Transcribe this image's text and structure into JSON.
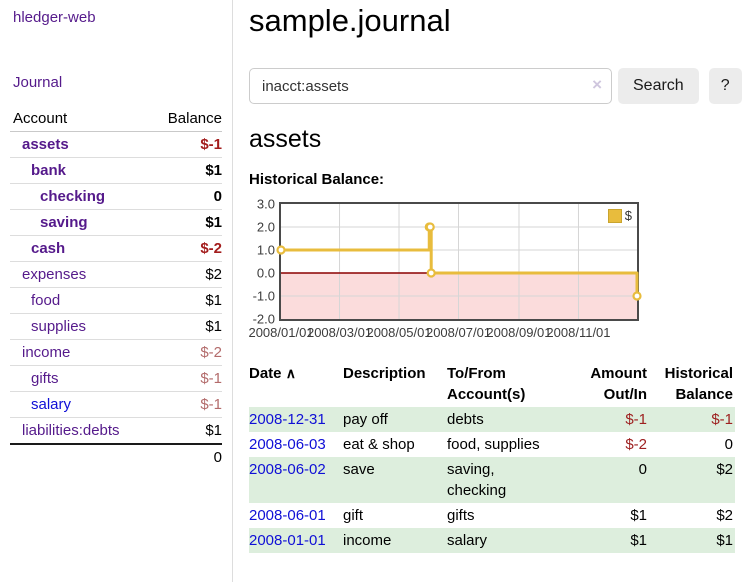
{
  "app": {
    "brand": "hledger-web",
    "nav_journal": "Journal"
  },
  "sidebar": {
    "col_account": "Account",
    "col_balance": "Balance",
    "accounts": [
      {
        "name": "assets",
        "balance": "$-1"
      },
      {
        "name": "bank",
        "balance": "$1"
      },
      {
        "name": "checking",
        "balance": "0"
      },
      {
        "name": "saving",
        "balance": "$1"
      },
      {
        "name": "cash",
        "balance": "$-2"
      },
      {
        "name": "expenses",
        "balance": "$2"
      },
      {
        "name": "food",
        "balance": "$1"
      },
      {
        "name": "supplies",
        "balance": "$1"
      },
      {
        "name": "income",
        "balance": "$-2"
      },
      {
        "name": "gifts",
        "balance": "$-1"
      },
      {
        "name": "salary",
        "balance": "$-1"
      },
      {
        "name": "liabilities:debts",
        "balance": "$1"
      }
    ],
    "total": "0"
  },
  "header": {
    "title": "sample.journal"
  },
  "search": {
    "value": "inacct:assets",
    "clear_icon": "×",
    "button_label": "Search",
    "help_label": "?"
  },
  "account_page": {
    "title": "assets",
    "chart_label": "Historical Balance:"
  },
  "chart_data": {
    "type": "line",
    "step": true,
    "title": "Historical Balance",
    "xlabel": "",
    "ylabel": "",
    "grid": true,
    "series": [
      {
        "name": "$",
        "color": "#e8bc3d",
        "points": [
          [
            "2008-01-01",
            1
          ],
          [
            "2008-06-01",
            2
          ],
          [
            "2008-06-02",
            2
          ],
          [
            "2008-06-03",
            0
          ],
          [
            "2008-12-31",
            -1
          ]
        ]
      }
    ],
    "xlim": [
      "2008-01-01",
      "2008-12-31"
    ],
    "ylim": [
      -2,
      3
    ],
    "x_ticks": [
      "2008/01/01",
      "2008/03/01",
      "2008/05/01",
      "2008/07/01",
      "2008/09/01",
      "2008/11/01"
    ],
    "y_ticks": [
      "3.0",
      "2.0",
      "1.0",
      "0.0",
      "-1.0",
      "-2.0"
    ],
    "legend": {
      "label": "$",
      "position": "top-right"
    },
    "negative_region_color": "#fbdcdc",
    "zero_line_color": "#8b0000",
    "gridline_color": "#d6d6d6"
  },
  "register": {
    "headers": {
      "date": "Date",
      "sort_indicator": "∧",
      "description": "Description",
      "accounts": "To/From Account(s)",
      "amount": "Amount Out/In",
      "balance": "Historical Balance"
    },
    "rows": [
      {
        "date": "2008-12-31",
        "description": "pay off",
        "accounts": "debts",
        "amount": "$-1",
        "balance": "$-1"
      },
      {
        "date": "2008-06-03",
        "description": "eat & shop",
        "accounts": "food, supplies",
        "amount": "$-2",
        "balance": "0"
      },
      {
        "date": "2008-06-02",
        "description": "save",
        "accounts": "saving,\nchecking",
        "amount": "0",
        "balance": "$2"
      },
      {
        "date": "2008-06-01",
        "description": "gift",
        "accounts": "gifts",
        "amount": "$1",
        "balance": "$2"
      },
      {
        "date": "2008-01-01",
        "description": "income",
        "accounts": "salary",
        "amount": "$1",
        "balance": "$1"
      }
    ]
  }
}
